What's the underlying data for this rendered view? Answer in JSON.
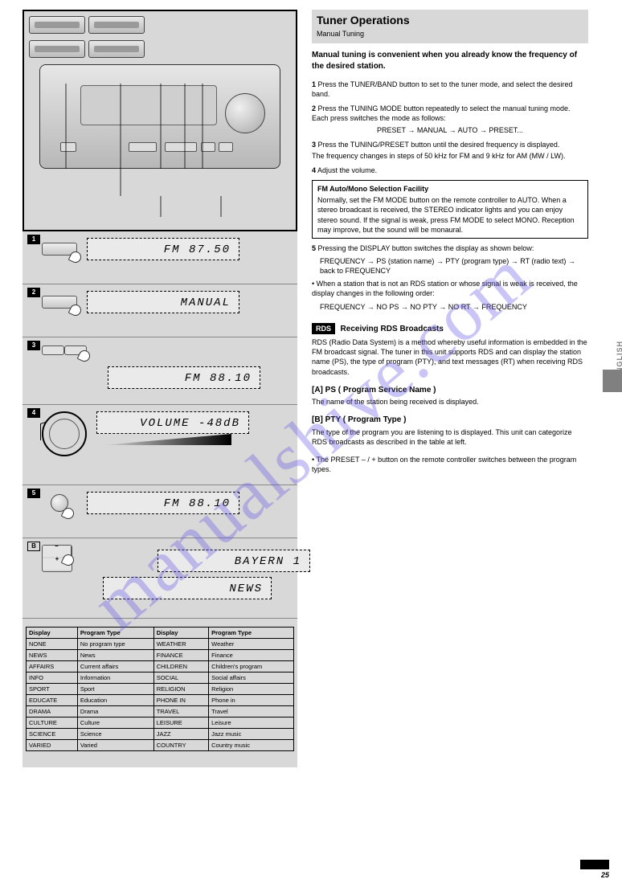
{
  "watermark": "manualshive.com",
  "page_number": "25",
  "side_label": "ENGLISH",
  "banner": {
    "title": "Tuner Operations",
    "subtitle": "Manual Tuning"
  },
  "right": {
    "intro1_head": "Manual tuning is convenient when you already know the frequency of the desired station.",
    "step1": {
      "n": "1",
      "text": "Press the TUNER/BAND button to set to the tuner mode, and select the desired band."
    },
    "step2": {
      "n": "2",
      "text": "Press the TUNING MODE button repeatedly to select the manual tuning mode. Each press switches the mode as follows:"
    },
    "step2_modes": "PRESET → MANUAL → AUTO → PRESET...",
    "step3": {
      "n": "3",
      "text": "Press the TUNING/PRESET button until the desired frequency is displayed."
    },
    "step3_note": "The frequency changes in steps of 50 kHz for FM and 9 kHz for AM (MW / LW).",
    "step4": {
      "n": "4",
      "text": "Adjust the volume."
    },
    "outline_title": "FM Auto/Mono Selection Facility",
    "outline_text": "Normally, set the FM MODE button on the remote controller to AUTO. When a stereo broadcast is received, the STEREO indicator lights and you can enjoy stereo sound. If the signal is weak, press FM MODE to select MONO. Reception may improve, but the sound will be monaural.",
    "fifth": {
      "n": "5",
      "title": "Pressing the DISPLAY button switches the display as shown below:",
      "seq": "FREQUENCY → PS (station name) → PTY (program type) → RT (radio text) → back to FREQUENCY",
      "note": "• When a station that is not an RDS station or whose signal is weak is received, the display changes in the following order:",
      "seq2": "FREQUENCY → NO PS → NO PTY → NO RT → FREQUENCY"
    },
    "rds_sect": {
      "badge": "RDS",
      "title": "Receiving RDS Broadcasts",
      "para": "RDS (Radio Data System) is a method whereby useful information is embedded in the FM broadcast signal. The tuner in this unit supports RDS and can display the station name (PS), the type of program (PTY), and text messages (RT) when receiving RDS broadcasts."
    },
    "rds_a": {
      "head": "[A] PS ( Program Service Name )",
      "body": "The name of the station being received is displayed."
    },
    "rds_b": {
      "head": "[B] PTY ( Program Type )",
      "body": "The type of the program you are listening to is displayed. This unit can categorize RDS broadcasts as described in the table at left."
    },
    "rds_note": "• The PRESET – / + button on the remote controller switches between the program types."
  },
  "lcd": {
    "s1": "FM  87.50",
    "s2": "MANUAL",
    "s3": "FM  88.10",
    "s4": "VOLUME -48dB",
    "s5a": "FM  88.10",
    "s6a": "BAYERN  1",
    "s6b": "NEWS"
  },
  "step_labels": {
    "s1": "1",
    "s2": "2",
    "s3": "3",
    "s4": "4",
    "s5": "5",
    "sA": "B"
  },
  "pty": {
    "headers": [
      "Display",
      "Program Type",
      "Display",
      "Program Type"
    ],
    "rows": [
      [
        "NONE",
        "No program type",
        "WEATHER",
        "Weather"
      ],
      [
        "NEWS",
        "News",
        "FINANCE",
        "Finance"
      ],
      [
        "AFFAIRS",
        "Current affairs",
        "CHILDREN",
        "Children's program"
      ],
      [
        "INFO",
        "Information",
        "SOCIAL",
        "Social affairs"
      ],
      [
        "SPORT",
        "Sport",
        "RELIGION",
        "Religion"
      ],
      [
        "EDUCATE",
        "Education",
        "PHONE IN",
        "Phone in"
      ],
      [
        "DRAMA",
        "Drama",
        "TRAVEL",
        "Travel"
      ],
      [
        "CULTURE",
        "Culture",
        "LEISURE",
        "Leisure"
      ],
      [
        "SCIENCE",
        "Science",
        "JAZZ",
        "Jazz music"
      ],
      [
        "VARIED",
        "Varied",
        "COUNTRY",
        "Country music"
      ]
    ]
  },
  "colors": {
    "panel": "#d8d8d8",
    "watermark": "rgba(100,90,230,0.35)"
  }
}
